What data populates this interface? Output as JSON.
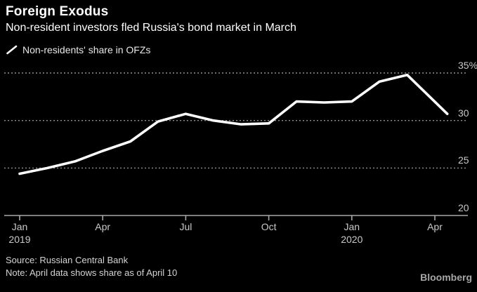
{
  "header": {
    "title": "Foreign Exodus",
    "subtitle": "Non-resident investors fled Russia's bond market in March"
  },
  "legend": {
    "icon": "line-swatch-icon",
    "label": "Non-residents' share in OFZs"
  },
  "footer": {
    "source": "Source: Russian Central Bank",
    "note": "Note: April data shows share as of April 10",
    "brand": "Bloomberg"
  },
  "colors": {
    "background": "#000000",
    "title_text": "#ffffff",
    "axis_label": "#c9c9c9",
    "gridline": "#8f8f8f",
    "axis_line": "#a8a8a8",
    "series_line": "#ffffff",
    "footer_text": "#d4d4d4",
    "brand_text": "#a6a6a6"
  },
  "chart_data": {
    "type": "line",
    "title": "Foreign Exodus",
    "subtitle": "Non-resident investors fled Russia's bond market in March",
    "ylabel": "Non-residents' share in OFZs (%)",
    "ylim": [
      20,
      35
    ],
    "grid": "horizontal-dotted",
    "legend_position": "top-left",
    "series": [
      {
        "name": "Non-residents' share in OFZs",
        "color": "#ffffff",
        "points": [
          {
            "label": "Jan 2019",
            "x": 0,
            "value": 24.4
          },
          {
            "label": "Feb 2019",
            "x": 1,
            "value": 25.0
          },
          {
            "label": "Mar 2019",
            "x": 2,
            "value": 25.7
          },
          {
            "label": "Apr 2019",
            "x": 3,
            "value": 26.8
          },
          {
            "label": "May 2019",
            "x": 4,
            "value": 27.8
          },
          {
            "label": "Jun 2019",
            "x": 5,
            "value": 29.9
          },
          {
            "label": "Jul 2019",
            "x": 6,
            "value": 30.7
          },
          {
            "label": "Aug 2019",
            "x": 7,
            "value": 30.0
          },
          {
            "label": "Sep 2019",
            "x": 8,
            "value": 29.6
          },
          {
            "label": "Oct 2019",
            "x": 9,
            "value": 29.7
          },
          {
            "label": "Nov 2019",
            "x": 10,
            "value": 32.0
          },
          {
            "label": "Dec 2019",
            "x": 11,
            "value": 31.9
          },
          {
            "label": "Jan 2020",
            "x": 12,
            "value": 32.0
          },
          {
            "label": "Feb 2020",
            "x": 13,
            "value": 34.1
          },
          {
            "label": "Mar 2020",
            "x": 14,
            "value": 34.8
          },
          {
            "label": "Apr 10 2020",
            "x": 15.45,
            "value": 30.7
          }
        ]
      }
    ],
    "x_ticks": [
      {
        "index": 0,
        "label": "Jan",
        "sublabel": "2019"
      },
      {
        "index": 3,
        "label": "Apr",
        "sublabel": ""
      },
      {
        "index": 6,
        "label": "Jul",
        "sublabel": ""
      },
      {
        "index": 9,
        "label": "Oct",
        "sublabel": ""
      },
      {
        "index": 12,
        "label": "Jan",
        "sublabel": "2020"
      },
      {
        "index": 15,
        "label": "Apr",
        "sublabel": ""
      }
    ],
    "y_ticks": [
      {
        "value": 35,
        "label": "35%"
      },
      {
        "value": 30,
        "label": "30"
      },
      {
        "value": 25,
        "label": "25"
      },
      {
        "value": 20,
        "label": "20"
      }
    ]
  }
}
